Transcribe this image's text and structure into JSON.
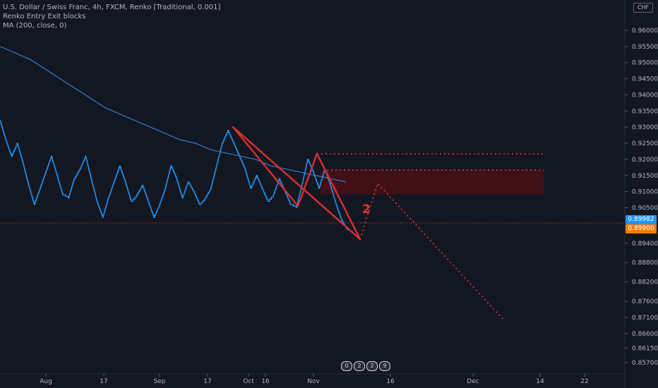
{
  "legend": {
    "symbol_line": "U.S. Dollar / Swiss Franc, 4h, FXCM, Renko [Traditional, 0.001]",
    "indicator_1": "Renko Entry Exit blocks",
    "indicator_2": "MA (200, close, 0)"
  },
  "axis": {
    "currency": "CHF",
    "price_tag_last": "0.89982",
    "price_tag_level": "0.89900"
  },
  "annotation_label": "2",
  "events": [
    "0",
    "2",
    "2",
    "9"
  ],
  "colors": {
    "background": "#131722",
    "renko": "#2196f3",
    "ma": "#2f7bd6",
    "drawing": "#e53935",
    "zone": "#4a0f14",
    "last_price": "#2196f3",
    "level_tag": "#f57c00"
  },
  "chart_data": {
    "type": "line",
    "title": "U.S. Dollar / Swiss Franc, 4h, FXCM, Renko [Traditional, 0.001]",
    "xlabel": "",
    "ylabel": "",
    "ylim": [
      0.855,
      0.966
    ],
    "grid": false,
    "x_ticks": [
      "Aug",
      "17",
      "Sep",
      "17",
      "Oct",
      "16",
      "Nov",
      "16",
      "Dec",
      "14",
      "22"
    ],
    "y_ticks": [
      "0.96000",
      "0.95500",
      "0.95000",
      "0.94500",
      "0.94000",
      "0.93500",
      "0.93000",
      "0.92500",
      "0.92000",
      "0.91500",
      "0.91000",
      "0.90500",
      "0.89400",
      "0.88800",
      "0.88200",
      "0.87600",
      "0.87100",
      "0.86600",
      "0.86150",
      "0.85700"
    ],
    "series": [
      {
        "role": "renko_close",
        "values": [
          0.932,
          0.926,
          0.921,
          0.925,
          0.919,
          0.912,
          0.906,
          0.911,
          0.916,
          0.921,
          0.915,
          0.909,
          0.908,
          0.914,
          0.917,
          0.921,
          0.914,
          0.907,
          0.902,
          0.908,
          0.913,
          0.918,
          0.913,
          0.907,
          0.909,
          0.912,
          0.907,
          0.902,
          0.906,
          0.911,
          0.918,
          0.914,
          0.908,
          0.913,
          0.91,
          0.906,
          0.908,
          0.911,
          0.918,
          0.925,
          0.929,
          0.925,
          0.921,
          0.917,
          0.911,
          0.915,
          0.911,
          0.907,
          0.909,
          0.914,
          0.91,
          0.906,
          0.905,
          0.912,
          0.92,
          0.916,
          0.911,
          0.917,
          0.912,
          0.906,
          0.901,
          0.898
        ]
      },
      {
        "role": "moving_average",
        "values": [
          0.955,
          0.953,
          0.951,
          0.948,
          0.945,
          0.942,
          0.939,
          0.936,
          0.934,
          0.932,
          0.93,
          0.928,
          0.926,
          0.925,
          0.923,
          0.922,
          0.921,
          0.92,
          0.918,
          0.917,
          0.916,
          0.915,
          0.914,
          0.913
        ]
      }
    ],
    "levels": {
      "upper_dotted": 0.92,
      "lower_dotted": 0.9155,
      "zone_top": 0.9155,
      "zone_bottom": 0.9085,
      "last_price": 0.89982,
      "marked_level": 0.899
    },
    "projection": [
      0.894,
      0.912,
      0.87
    ]
  }
}
